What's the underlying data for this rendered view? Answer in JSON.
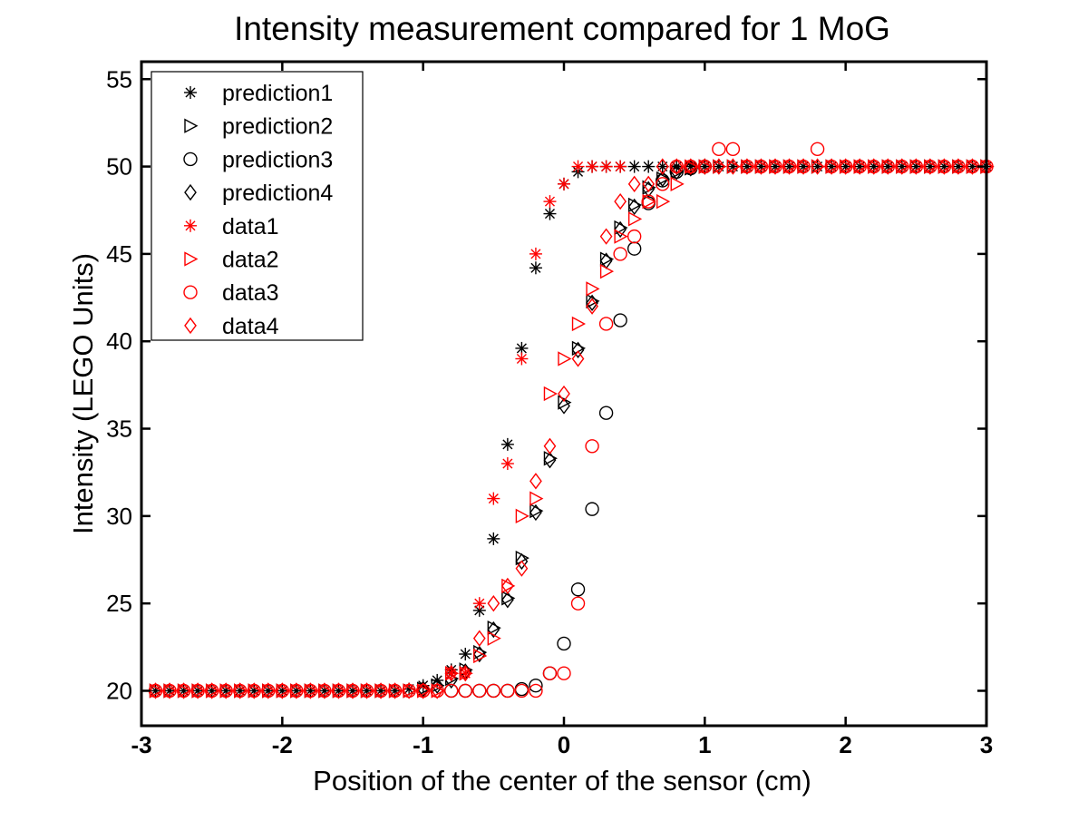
{
  "chart_data": {
    "type": "scatter",
    "title": "Intensity measurement compared for 1 MoG",
    "xlabel": "Position of the center of the sensor (cm)",
    "ylabel": "Intensity (LEGO Units)",
    "xlim": [
      -3,
      3
    ],
    "ylim": [
      18,
      56
    ],
    "xticks": [
      -3,
      -2,
      -1,
      0,
      1,
      2,
      3
    ],
    "xtick_labels": [
      "-3",
      "-2",
      "-1",
      "0",
      "1",
      "2",
      "3"
    ],
    "yticks": [
      20,
      25,
      30,
      35,
      40,
      45,
      50,
      55
    ],
    "ytick_labels": [
      "20",
      "25",
      "30",
      "35",
      "40",
      "45",
      "50",
      "55"
    ],
    "legend_position": "top-left",
    "colors": {
      "prediction": "#000000",
      "data": "#ff0000"
    },
    "series": [
      {
        "name": "prediction1",
        "marker": "star",
        "color": "#000000",
        "x": [
          -2.9,
          -2.8,
          -2.7,
          -2.6,
          -2.5,
          -2.4,
          -2.3,
          -2.2,
          -2.1,
          -2.0,
          -1.9,
          -1.8,
          -1.7,
          -1.6,
          -1.5,
          -1.4,
          -1.3,
          -1.2,
          -1.1,
          -1.0,
          -0.9,
          -0.8,
          -0.7,
          -0.6,
          -0.5,
          -0.4,
          -0.3,
          -0.2,
          -0.1,
          0.0,
          0.1,
          0.2,
          0.3,
          0.4,
          0.5,
          0.6,
          0.7,
          0.8,
          0.9,
          1.0,
          1.1,
          1.2,
          1.3,
          1.4,
          1.5,
          1.6,
          1.7,
          1.8,
          1.9,
          2.0,
          2.1,
          2.2,
          2.3,
          2.4,
          2.5,
          2.6,
          2.7,
          2.8,
          2.9,
          3.0
        ],
        "y": [
          20,
          20,
          20,
          20,
          20,
          20,
          20,
          20,
          20,
          20,
          20,
          20,
          20,
          20,
          20,
          20,
          20,
          20,
          20.1,
          20.3,
          20.6,
          21.2,
          22.1,
          24.6,
          28.7,
          34.1,
          39.6,
          44.2,
          47.3,
          49.0,
          49.7,
          50,
          50,
          50,
          50,
          50,
          50,
          50,
          50,
          50,
          50,
          50,
          50,
          50,
          50,
          50,
          50,
          50,
          50,
          50,
          50,
          50,
          50,
          50,
          50,
          50,
          50,
          50,
          50,
          50
        ]
      },
      {
        "name": "prediction2",
        "marker": "triangle-right",
        "color": "#000000",
        "x": [
          -2.9,
          -2.8,
          -2.7,
          -2.6,
          -2.5,
          -2.4,
          -2.3,
          -2.2,
          -2.1,
          -2.0,
          -1.9,
          -1.8,
          -1.7,
          -1.6,
          -1.5,
          -1.4,
          -1.3,
          -1.2,
          -1.1,
          -1.0,
          -0.9,
          -0.8,
          -0.7,
          -0.6,
          -0.5,
          -0.4,
          -0.3,
          -0.2,
          -0.1,
          0.0,
          0.1,
          0.2,
          0.3,
          0.4,
          0.5,
          0.6,
          0.7,
          0.8,
          0.9,
          1.0,
          1.1,
          1.2,
          1.3,
          1.4,
          1.5,
          1.6,
          1.7,
          1.8,
          1.9,
          2.0,
          2.1,
          2.2,
          2.3,
          2.4,
          2.5,
          2.6,
          2.7,
          2.8,
          2.9,
          3.0
        ],
        "y": [
          20,
          20,
          20,
          20,
          20,
          20,
          20,
          20,
          20,
          20,
          20,
          20,
          20,
          20,
          20,
          20,
          20,
          20,
          20,
          20.1,
          20.3,
          20.7,
          21.2,
          22.2,
          23.6,
          25.3,
          27.6,
          30.3,
          33.3,
          36.5,
          39.6,
          42.3,
          44.7,
          46.5,
          47.8,
          48.8,
          49.3,
          49.7,
          49.9,
          50,
          50,
          50,
          50,
          50,
          50,
          50,
          50,
          50,
          50,
          50,
          50,
          50,
          50,
          50,
          50,
          50,
          50,
          50,
          50,
          50
        ]
      },
      {
        "name": "prediction3",
        "marker": "circle",
        "color": "#000000",
        "x": [
          -0.8,
          -0.7,
          -0.6,
          -0.5,
          -0.4,
          -0.3,
          -0.2,
          -0.1,
          0.0,
          0.1,
          0.2,
          0.3,
          0.4,
          0.5,
          0.6,
          0.7,
          0.8,
          0.9,
          1.0
        ],
        "y": [
          20,
          20,
          20,
          20,
          20,
          20.1,
          20.3,
          21.0,
          22.7,
          25.8,
          30.4,
          35.9,
          41.2,
          45.3,
          47.9,
          49.2,
          49.7,
          49.9,
          50
        ]
      },
      {
        "name": "prediction4",
        "marker": "diamond",
        "color": "#000000",
        "x": [
          -1.0,
          -0.9,
          -0.8,
          -0.7,
          -0.6,
          -0.5,
          -0.4,
          -0.3,
          -0.2,
          -0.1,
          0.0,
          0.1,
          0.2,
          0.3,
          0.4,
          0.5,
          0.6,
          0.7,
          0.8,
          0.9,
          1.0
        ],
        "y": [
          20.1,
          20.3,
          20.6,
          21.1,
          22.1,
          23.5,
          25.2,
          27.4,
          30.2,
          33.2,
          36.3,
          39.5,
          42.2,
          44.6,
          46.4,
          47.7,
          48.7,
          49.3,
          49.7,
          49.9,
          50
        ]
      },
      {
        "name": "data1",
        "marker": "star",
        "color": "#ff0000",
        "x": [
          -0.8,
          -0.7,
          -0.6,
          -0.5,
          -0.4,
          -0.3,
          -0.2,
          -0.1,
          0.0,
          0.1,
          0.2,
          0.3,
          0.4
        ],
        "y": [
          21,
          21,
          25,
          31,
          33,
          39,
          45,
          48,
          49,
          50,
          50,
          50,
          50
        ]
      },
      {
        "name": "data2",
        "marker": "triangle-right",
        "color": "#ff0000",
        "x": [
          -2.9,
          -2.8,
          -2.7,
          -2.6,
          -2.5,
          -2.4,
          -2.3,
          -2.2,
          -2.1,
          -2.0,
          -1.9,
          -1.8,
          -1.7,
          -1.6,
          -1.5,
          -1.4,
          -1.3,
          -1.2,
          -1.1,
          -1.0,
          -0.9,
          -0.8,
          -0.7,
          -0.6,
          -0.5,
          -0.4,
          -0.3,
          -0.2,
          -0.1,
          0.0,
          0.1,
          0.2,
          0.3,
          0.4,
          0.5,
          0.6,
          0.7,
          0.8,
          0.9,
          1.0,
          1.1,
          1.2,
          1.3,
          1.4,
          1.5,
          1.6,
          1.7,
          1.8,
          1.9,
          2.0,
          2.1,
          2.2,
          2.3,
          2.4,
          2.5,
          2.6,
          2.7,
          2.8,
          2.9,
          3.0
        ],
        "y": [
          20,
          20,
          20,
          20,
          20,
          20,
          20,
          20,
          20,
          20,
          20,
          20,
          20,
          20,
          20,
          20,
          20,
          20,
          20,
          20,
          20,
          21,
          21,
          22,
          23,
          26,
          30,
          31,
          37,
          39,
          41,
          43,
          44,
          46,
          47,
          48,
          48,
          49,
          50,
          50,
          50,
          50,
          50,
          50,
          50,
          50,
          50,
          50,
          50,
          50,
          50,
          50,
          50,
          50,
          50,
          50,
          50,
          50,
          50,
          50
        ]
      },
      {
        "name": "data3",
        "marker": "circle",
        "color": "#ff0000",
        "x": [
          -2.9,
          -2.8,
          -2.7,
          -2.6,
          -2.5,
          -2.4,
          -2.3,
          -2.2,
          -2.1,
          -2.0,
          -1.9,
          -1.8,
          -1.7,
          -1.6,
          -1.5,
          -1.4,
          -1.3,
          -1.2,
          -1.1,
          -1.0,
          -0.9,
          -0.8,
          -0.7,
          -0.6,
          -0.5,
          -0.4,
          -0.3,
          -0.2,
          -0.1,
          0.0,
          0.1,
          0.2,
          0.3,
          0.4,
          0.5,
          0.6,
          0.7,
          0.8,
          0.9,
          1.0,
          1.1,
          1.2,
          1.3,
          1.4,
          1.5,
          1.6,
          1.7,
          1.8,
          1.9,
          2.0,
          2.1,
          2.2,
          2.3,
          2.4,
          2.5,
          2.6,
          2.7,
          2.8,
          2.9,
          3.0
        ],
        "y": [
          20,
          20,
          20,
          20,
          20,
          20,
          20,
          20,
          20,
          20,
          20,
          20,
          20,
          20,
          20,
          20,
          20,
          20,
          20,
          20,
          20,
          20,
          20,
          20,
          20,
          20,
          20,
          20,
          21,
          21,
          25,
          34,
          41,
          45,
          46,
          48,
          49,
          50,
          50,
          50,
          51,
          51,
          50,
          50,
          50,
          50,
          50,
          51,
          50,
          50,
          50,
          50,
          50,
          50,
          50,
          50,
          50,
          50,
          50,
          50
        ]
      },
      {
        "name": "data4",
        "marker": "diamond",
        "color": "#ff0000",
        "x": [
          -2.9,
          -2.8,
          -2.7,
          -2.6,
          -2.5,
          -2.4,
          -2.3,
          -2.2,
          -2.1,
          -2.0,
          -1.9,
          -1.8,
          -1.7,
          -1.6,
          -1.5,
          -1.4,
          -1.3,
          -1.2,
          -1.1,
          -1.0,
          -0.9,
          -0.8,
          -0.7,
          -0.6,
          -0.5,
          -0.4,
          -0.3,
          -0.2,
          -0.1,
          0.0,
          0.1,
          0.2,
          0.3,
          0.4,
          0.5,
          0.6,
          0.7,
          0.8,
          0.9,
          1.0,
          1.1,
          1.2,
          1.3,
          1.4,
          1.5,
          1.6,
          1.7,
          1.8,
          1.9,
          2.0,
          2.1,
          2.2,
          2.3,
          2.4,
          2.5,
          2.6,
          2.7,
          2.8,
          2.9,
          3.0
        ],
        "y": [
          20,
          20,
          20,
          20,
          20,
          20,
          20,
          20,
          20,
          20,
          20,
          20,
          20,
          20,
          20,
          20,
          20,
          20,
          20,
          20,
          20,
          21,
          21,
          23,
          25,
          26,
          27,
          32,
          34,
          37,
          39,
          42,
          46,
          48,
          49,
          49,
          50,
          50,
          50,
          50,
          50,
          50,
          50,
          50,
          50,
          50,
          50,
          50,
          50,
          50,
          50,
          50,
          50,
          50,
          50,
          50,
          50,
          50,
          50,
          50
        ]
      }
    ]
  }
}
